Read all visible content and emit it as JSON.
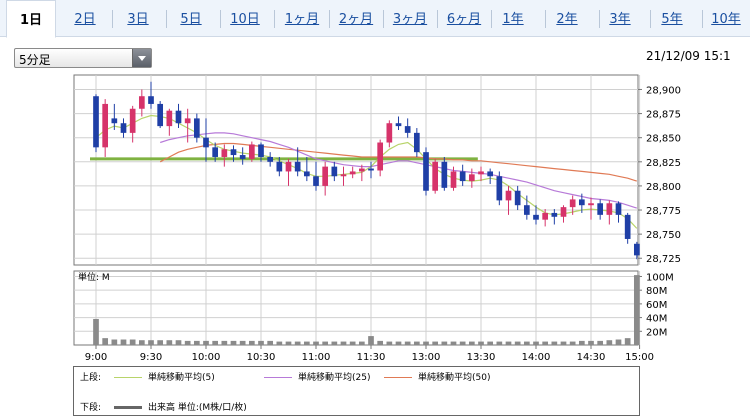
{
  "tabs": [
    {
      "label": "1日",
      "active": true
    },
    {
      "label": "2日"
    },
    {
      "label": "3日"
    },
    {
      "label": "5日"
    },
    {
      "label": "10日"
    },
    {
      "label": "1ヶ月"
    },
    {
      "label": "2ヶ月"
    },
    {
      "label": "3ヶ月"
    },
    {
      "label": "6ヶ月"
    },
    {
      "label": "1年"
    },
    {
      "label": "2年"
    },
    {
      "label": "3年"
    },
    {
      "label": "5年"
    },
    {
      "label": "10年"
    }
  ],
  "interval_select": {
    "value": "5分足"
  },
  "timestamp": "21/12/09 15:1",
  "legend": {
    "upper_label": "上段:",
    "lower_label": "下段:",
    "ma5": "単純移動平均(5)",
    "ma25": "単純移動平均(25)",
    "ma50": "単純移動平均(50)",
    "volume": "出来高 単位:(M株/口/枚)"
  },
  "colors": {
    "up": "#d6336a",
    "down": "#1f3fa6",
    "ma5": "#b8d46a",
    "ma25": "#b77ad8",
    "ma50": "#e07a55",
    "hline": "#7fb241",
    "volume": "#8a8a8a"
  },
  "chart_data": [
    {
      "type": "candlestick",
      "y_ticks": [
        28725,
        28750,
        28775,
        28800,
        28825,
        28850,
        28875,
        28900
      ],
      "ylim": [
        28718,
        28915
      ],
      "horizontal_line": 28828,
      "candles": [
        [
          28893,
          28895,
          28835,
          28840
        ],
        [
          28840,
          28890,
          28830,
          28885
        ],
        [
          28870,
          28885,
          28858,
          28865
        ],
        [
          28865,
          28870,
          28850,
          28855
        ],
        [
          28855,
          28883,
          28845,
          28880
        ],
        [
          28880,
          28900,
          28872,
          28893
        ],
        [
          28893,
          28908,
          28880,
          28885
        ],
        [
          28885,
          28888,
          28860,
          28862
        ],
        [
          28862,
          28880,
          28852,
          28878
        ],
        [
          28878,
          28885,
          28860,
          28865
        ],
        [
          28865,
          28880,
          28845,
          28870
        ],
        [
          28870,
          28875,
          28845,
          28850
        ],
        [
          28850,
          28870,
          28825,
          28840
        ],
        [
          28840,
          28845,
          28825,
          28830
        ],
        [
          28830,
          28843,
          28820,
          28838
        ],
        [
          28838,
          28842,
          28825,
          28832
        ],
        [
          28832,
          28840,
          28822,
          28828
        ],
        [
          28828,
          28846,
          28825,
          28843
        ],
        [
          28843,
          28845,
          28825,
          28830
        ],
        [
          28830,
          28835,
          28820,
          28825
        ],
        [
          28825,
          28830,
          28810,
          28815
        ],
        [
          28815,
          28828,
          28800,
          28825
        ],
        [
          28825,
          28840,
          28810,
          28815
        ],
        [
          28815,
          28830,
          28805,
          28810
        ],
        [
          28810,
          28825,
          28795,
          28800
        ],
        [
          28800,
          28825,
          28790,
          28820
        ],
        [
          28820,
          28825,
          28805,
          28810
        ],
        [
          28810,
          28820,
          28800,
          28812
        ],
        [
          28812,
          28820,
          28808,
          28815
        ],
        [
          28815,
          28822,
          28805,
          28818
        ],
        [
          28818,
          28825,
          28808,
          28816
        ],
        [
          28816,
          28848,
          28810,
          28845
        ],
        [
          28845,
          28868,
          28840,
          28865
        ],
        [
          28865,
          28872,
          28858,
          28862
        ],
        [
          28862,
          28870,
          28850,
          28855
        ],
        [
          28855,
          28860,
          28830,
          28835
        ],
        [
          28835,
          28840,
          28790,
          28795
        ],
        [
          28795,
          28828,
          28792,
          28825
        ],
        [
          28825,
          28830,
          28795,
          28798
        ],
        [
          28798,
          28820,
          28795,
          28815
        ],
        [
          28815,
          28822,
          28800,
          28805
        ],
        [
          28805,
          28818,
          28798,
          28812
        ],
        [
          28812,
          28820,
          28805,
          28815
        ],
        [
          28815,
          28818,
          28802,
          28810
        ],
        [
          28810,
          28815,
          28780,
          28785
        ],
        [
          28785,
          28800,
          28770,
          28795
        ],
        [
          28795,
          28800,
          28775,
          28780
        ],
        [
          28780,
          28790,
          28765,
          28770
        ],
        [
          28770,
          28780,
          28760,
          28765
        ],
        [
          28765,
          28776,
          28758,
          28772
        ],
        [
          28772,
          28776,
          28760,
          28768
        ],
        [
          28768,
          28780,
          28762,
          28778
        ],
        [
          28778,
          28790,
          28770,
          28786
        ],
        [
          28786,
          28792,
          28772,
          28780
        ],
        [
          28780,
          28788,
          28765,
          28782
        ],
        [
          28782,
          28786,
          28765,
          28770
        ],
        [
          28770,
          28785,
          28760,
          28782
        ],
        [
          28782,
          28784,
          28762,
          28770
        ],
        [
          28770,
          28772,
          28740,
          28745
        ],
        [
          28740,
          28742,
          28724,
          28728
        ]
      ],
      "ma5": [
        28850,
        28858,
        28862,
        28860,
        28865,
        28870,
        28873,
        28872,
        28870,
        28865,
        28860,
        28855,
        28848,
        28842,
        28838,
        28836,
        28834,
        28833,
        28832,
        28830,
        28826,
        28822,
        28818,
        28813,
        28810,
        28810,
        28811,
        28812,
        28813,
        28814,
        28820,
        28830,
        28838,
        28843,
        28845,
        28838,
        28828,
        28818,
        28812,
        28808,
        28806,
        28805,
        28806,
        28808,
        28806,
        28800,
        28792,
        28785,
        28778,
        28772,
        28770,
        28771,
        28773,
        28775,
        28776,
        28775,
        28774,
        28772,
        28766,
        28756
      ],
      "ma25": [
        null,
        null,
        null,
        null,
        null,
        null,
        null,
        28845,
        28848,
        28850,
        28852,
        28853,
        28854,
        28855,
        28855,
        28854,
        28852,
        28850,
        28848,
        28846,
        28843,
        28840,
        28836,
        28832,
        28828,
        28826,
        28824,
        28822,
        28821,
        28820,
        28820,
        28822,
        28824,
        28826,
        28826,
        28824,
        28822,
        28820,
        28818,
        28816,
        28815,
        28814,
        28813,
        28812,
        28810,
        28808,
        28806,
        28804,
        28801,
        28798,
        28795,
        28793,
        28791,
        28789,
        28787,
        28786,
        28785,
        28783,
        28780,
        28777
      ],
      "ma50": [
        null,
        null,
        null,
        null,
        null,
        null,
        null,
        28825,
        28830,
        28835,
        28838,
        28840,
        28842,
        28843,
        28844,
        28844,
        28843,
        28842,
        28841,
        28840,
        28839,
        28838,
        28837,
        28836,
        28835,
        28834,
        28833,
        28832,
        28831,
        28830,
        28830,
        28830,
        28830,
        28830,
        28830,
        28830,
        28829,
        28828,
        28828,
        28827,
        28827,
        28826,
        28826,
        28825,
        28824,
        28823,
        28822,
        28821,
        28820,
        28819,
        28818,
        28817,
        28816,
        28815,
        28814,
        28813,
        28812,
        28810,
        28808,
        28805
      ]
    },
    {
      "type": "bar",
      "unit_label": "単位: M",
      "y_ticks": [
        "20M",
        "40M",
        "60M",
        "80M",
        "100M"
      ],
      "ylim": [
        0,
        108
      ],
      "x_tick_labels": [
        "9:00",
        "9:30",
        "10:00",
        "10:30",
        "11:00",
        "11:30",
        "13:00",
        "13:30",
        "14:00",
        "14:30",
        "15:00"
      ],
      "volumes": [
        38,
        10,
        8,
        8,
        8,
        7,
        7,
        7,
        7,
        7,
        6,
        6,
        6,
        6,
        6,
        6,
        6,
        6,
        6,
        6,
        5,
        5,
        5,
        5,
        5,
        5,
        5,
        5,
        5,
        5,
        13,
        6,
        5,
        5,
        5,
        5,
        5,
        5,
        5,
        5,
        5,
        5,
        5,
        5,
        5,
        5,
        5,
        5,
        5,
        5,
        5,
        5,
        5,
        6,
        6,
        6,
        7,
        8,
        10,
        102
      ]
    }
  ]
}
